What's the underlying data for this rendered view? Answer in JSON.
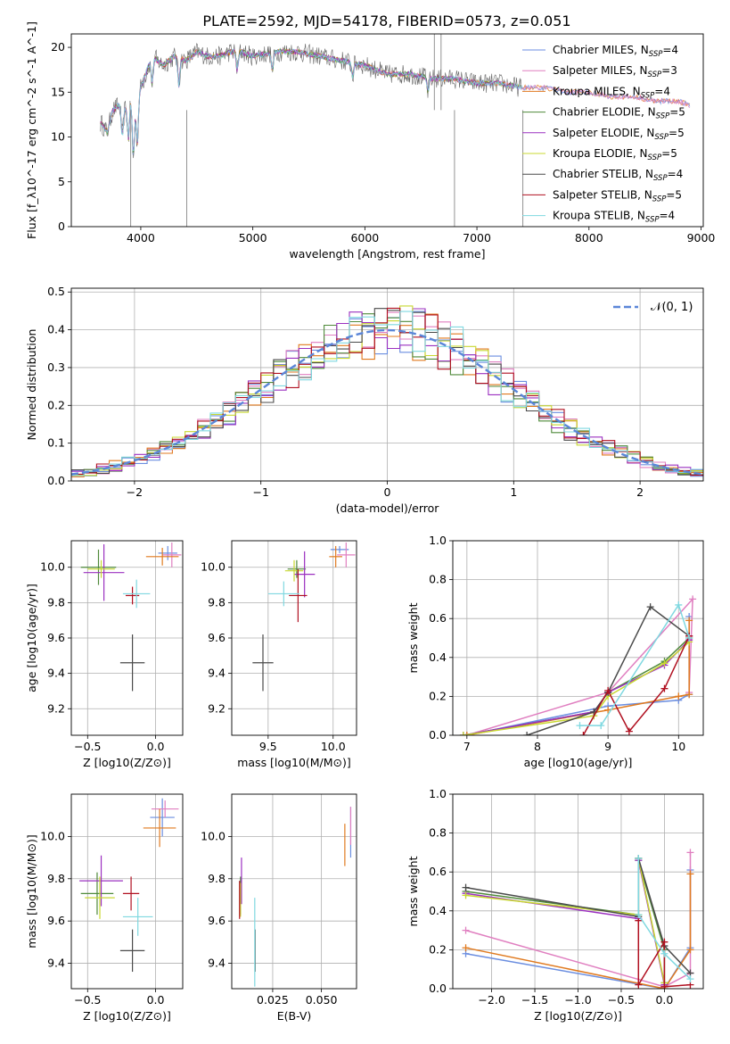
{
  "title": "PLATE=2592, MJD=54178, FIBERID=0573, z=0.051",
  "colors": {
    "Chabrier MILES": "#6b8ee0",
    "Salpeter MILES": "#e07fc0",
    "Kroupa MILES": "#e07a1f",
    "Chabrier ELODIE": "#4f8a3a",
    "Salpeter ELODIE": "#9b30c0",
    "Kroupa ELODIE": "#c8d830",
    "Chabrier STELIB": "#4a4a4a",
    "Salpeter STELIB": "#b01020",
    "Kroupa STELIB": "#7fd8e0"
  },
  "chart_data": [
    {
      "id": "spectrum",
      "type": "line",
      "xlabel": "wavelength [Angstrom, rest frame]",
      "ylabel": "Flux [f_λ10^-17 erg cm^-2 s^-1 A^-1]",
      "xlim": [
        3380,
        9020
      ],
      "ylim": [
        0,
        21.5
      ],
      "xticks": [
        "4000",
        "5000",
        "6000",
        "7000",
        "8000",
        "9000"
      ],
      "yticks": [
        "0",
        "5",
        "10",
        "15",
        "20"
      ],
      "grid": false,
      "legend": "upper-right",
      "data_x": [
        3650,
        3700,
        3750,
        3800,
        3850,
        3900,
        3950,
        4000,
        4100,
        4200,
        4300,
        4400,
        4500,
        4600,
        4700,
        4800,
        4900,
        5000,
        5200,
        5400,
        5600,
        5800,
        6000,
        6200,
        6400,
        6600,
        6800,
        7000,
        7200,
        7400,
        7600,
        7800,
        8000,
        8200,
        8400,
        8600,
        8800,
        8900
      ],
      "data_y": [
        11.5,
        10.5,
        13.0,
        13.5,
        13.0,
        14.0,
        13.5,
        15.5,
        19.0,
        18.0,
        19.0,
        18.5,
        19.5,
        19.0,
        19.0,
        19.5,
        19.5,
        19.0,
        19.5,
        19.5,
        19.0,
        18.5,
        18.0,
        17.0,
        17.0,
        16.5,
        16.5,
        16.0,
        16.0,
        15.5,
        15.5,
        15.0,
        15.0,
        14.5,
        14.5,
        14.0,
        14.0,
        13.5
      ],
      "legend_entries": [
        {
          "label": "Chabrier MILES, N",
          "sub": "SSP",
          "suffix": "=4"
        },
        {
          "label": "Salpeter MILES, N",
          "sub": "SSP",
          "suffix": "=3"
        },
        {
          "label": "Kroupa MILES, N",
          "sub": "SSP",
          "suffix": "=4"
        },
        {
          "label": "Chabrier ELODIE, N",
          "sub": "SSP",
          "suffix": "=5"
        },
        {
          "label": "Salpeter ELODIE, N",
          "sub": "SSP",
          "suffix": "=5"
        },
        {
          "label": "Kroupa ELODIE, N",
          "sub": "SSP",
          "suffix": "=5"
        },
        {
          "label": "Chabrier STELIB, N",
          "sub": "SSP",
          "suffix": "=4"
        },
        {
          "label": "Salpeter STELIB, N",
          "sub": "SSP",
          "suffix": "=5"
        },
        {
          "label": "Kroupa STELIB, N",
          "sub": "SSP",
          "suffix": "=4"
        }
      ]
    },
    {
      "id": "residuals",
      "type": "line",
      "xlabel": "(data-model)/error",
      "ylabel": "Normed distribution",
      "xlim": [
        -2.5,
        2.5
      ],
      "ylim": [
        0,
        0.51
      ],
      "xticks": [
        "-2",
        "-1",
        "0",
        "1",
        "2"
      ],
      "yticks": [
        "0.0",
        "0.1",
        "0.2",
        "0.3",
        "0.4",
        "0.5"
      ],
      "grid": true,
      "legend": "upper-right",
      "legend_label": "𝒩(0, 1)",
      "bin_width": 0.1,
      "bin_start": -2.5
    },
    {
      "id": "age_vs_Z",
      "type": "scatter",
      "xlabel": "Z [log10(Z/Z⊙)]",
      "ylabel": "age [log10(age/yr)]",
      "xlim": [
        -0.62,
        0.2
      ],
      "ylim": [
        9.05,
        10.15
      ],
      "xticks": [
        "-0.5",
        "0.0"
      ],
      "yticks": [
        "9.2",
        "9.4",
        "9.6",
        "9.8",
        "10.0"
      ],
      "grid": true,
      "points": [
        {
          "model": "Chabrier MILES",
          "x": 0.09,
          "y": 10.08,
          "xerr": 0.07,
          "yerr": 0.04
        },
        {
          "model": "Salpeter MILES",
          "x": 0.12,
          "y": 10.07,
          "xerr": 0.07,
          "yerr": 0.07
        },
        {
          "model": "Kroupa MILES",
          "x": 0.05,
          "y": 10.06,
          "xerr": 0.12,
          "yerr": 0.05
        },
        {
          "model": "Chabrier ELODIE",
          "x": -0.42,
          "y": 10.0,
          "xerr": 0.13,
          "yerr": 0.1
        },
        {
          "model": "Salpeter ELODIE",
          "x": -0.38,
          "y": 9.97,
          "xerr": 0.15,
          "yerr": 0.16
        },
        {
          "model": "Kroupa ELODIE",
          "x": -0.4,
          "y": 9.99,
          "xerr": 0.1,
          "yerr": 0.05
        },
        {
          "model": "Chabrier STELIB",
          "x": -0.17,
          "y": 9.46,
          "xerr": 0.09,
          "yerr": 0.16
        },
        {
          "model": "Salpeter STELIB",
          "x": -0.17,
          "y": 9.84,
          "xerr": 0.05,
          "yerr": 0.05
        },
        {
          "model": "Kroupa STELIB",
          "x": -0.14,
          "y": 9.85,
          "xerr": 0.1,
          "yerr": 0.08
        }
      ]
    },
    {
      "id": "age_vs_mass",
      "type": "scatter",
      "xlabel": "mass [log10(M/M⊙)]",
      "ylabel": "",
      "xlim": [
        9.22,
        10.18
      ],
      "ylim": [
        9.05,
        10.15
      ],
      "xticks": [
        "9.5",
        "10.0"
      ],
      "yticks": [
        "9.2",
        "9.4",
        "9.6",
        "9.8",
        "10.0"
      ],
      "grid": true,
      "points": [
        {
          "model": "Chabrier MILES",
          "x": 10.05,
          "y": 10.1,
          "xerr": 0.07,
          "yerr": 0.02
        },
        {
          "model": "Salpeter MILES",
          "x": 10.1,
          "y": 10.07,
          "xerr": 0.07,
          "yerr": 0.07
        },
        {
          "model": "Kroupa MILES",
          "x": 10.02,
          "y": 10.06,
          "xerr": 0.05,
          "yerr": 0.06
        },
        {
          "model": "Chabrier ELODIE",
          "x": 9.72,
          "y": 9.99,
          "xerr": 0.07,
          "yerr": 0.05
        },
        {
          "model": "Salpeter ELODIE",
          "x": 9.78,
          "y": 9.96,
          "xerr": 0.08,
          "yerr": 0.13
        },
        {
          "model": "Kroupa ELODIE",
          "x": 9.7,
          "y": 9.98,
          "xerr": 0.07,
          "yerr": 0.06
        },
        {
          "model": "Chabrier STELIB",
          "x": 9.46,
          "y": 9.46,
          "xerr": 0.08,
          "yerr": 0.16
        },
        {
          "model": "Salpeter STELIB",
          "x": 9.73,
          "y": 9.84,
          "xerr": 0.07,
          "yerr": 0.15
        },
        {
          "model": "Kroupa STELIB",
          "x": 9.62,
          "y": 9.85,
          "xerr": 0.12,
          "yerr": 0.07
        }
      ]
    },
    {
      "id": "mass_weight_vs_age",
      "type": "line",
      "xlabel": "age [log10(age/yr)]",
      "ylabel": "mass weight",
      "xlim": [
        6.8,
        10.35
      ],
      "ylim": [
        0,
        1.0
      ],
      "xticks": [
        "7",
        "8",
        "9",
        "10"
      ],
      "yticks": [
        "0.0",
        "0.2",
        "0.4",
        "0.6",
        "0.8",
        "1.0"
      ],
      "grid": true,
      "series": [
        {
          "model": "Chabrier MILES",
          "x": [
            7.0,
            9.0,
            10.0,
            10.15,
            10.15
          ],
          "y": [
            0.0,
            0.15,
            0.18,
            0.21,
            0.61
          ]
        },
        {
          "model": "Salpeter MILES",
          "x": [
            7.0,
            9.0,
            10.2,
            10.15
          ],
          "y": [
            0.0,
            0.22,
            0.7,
            0.22
          ]
        },
        {
          "model": "Kroupa MILES",
          "x": [
            7.0,
            9.0,
            10.0,
            10.15,
            10.15
          ],
          "y": [
            0.0,
            0.13,
            0.2,
            0.21,
            0.59
          ]
        },
        {
          "model": "Chabrier ELODIE",
          "x": [
            6.95,
            8.8,
            9.0,
            9.8,
            10.15
          ],
          "y": [
            0.0,
            0.12,
            0.22,
            0.38,
            0.5
          ]
        },
        {
          "model": "Salpeter ELODIE",
          "x": [
            6.95,
            8.8,
            9.0,
            9.8,
            10.15
          ],
          "y": [
            0.0,
            0.12,
            0.22,
            0.36,
            0.49
          ]
        },
        {
          "model": "Kroupa ELODIE",
          "x": [
            6.95,
            8.8,
            9.0,
            9.8,
            10.15
          ],
          "y": [
            0.0,
            0.1,
            0.2,
            0.37,
            0.48
          ]
        },
        {
          "model": "Chabrier STELIB",
          "x": [
            7.85,
            8.8,
            9.0,
            9.6,
            10.15
          ],
          "y": [
            0.0,
            0.12,
            0.22,
            0.66,
            0.51
          ]
        },
        {
          "model": "Salpeter STELIB",
          "x": [
            8.65,
            9.0,
            9.3,
            9.8,
            10.15
          ],
          "y": [
            0.0,
            0.23,
            0.02,
            0.24,
            0.51
          ]
        },
        {
          "model": "Kroupa STELIB",
          "x": [
            8.6,
            8.9,
            10.0,
            10.15
          ],
          "y": [
            0.05,
            0.05,
            0.67,
            0.5
          ]
        }
      ]
    },
    {
      "id": "mass_vs_Z",
      "type": "scatter",
      "xlabel": "Z [log10(Z/Z⊙)]",
      "ylabel": "mass [log10(M/M⊙)]",
      "xlim": [
        -0.62,
        0.2
      ],
      "ylim": [
        9.28,
        10.2
      ],
      "xticks": [
        "-0.5",
        "0.0"
      ],
      "yticks": [
        "9.4",
        "9.6",
        "9.8",
        "10.0"
      ],
      "grid": true,
      "points": [
        {
          "model": "Chabrier MILES",
          "x": 0.05,
          "y": 10.09,
          "xerr": 0.09,
          "yerr": 0.09
        },
        {
          "model": "Salpeter MILES",
          "x": 0.07,
          "y": 10.13,
          "xerr": 0.1,
          "yerr": 0.04
        },
        {
          "model": "Kroupa MILES",
          "x": 0.03,
          "y": 10.04,
          "xerr": 0.12,
          "yerr": 0.09
        },
        {
          "model": "Chabrier ELODIE",
          "x": -0.43,
          "y": 9.73,
          "xerr": 0.12,
          "yerr": 0.1
        },
        {
          "model": "Salpeter ELODIE",
          "x": -0.4,
          "y": 9.79,
          "xerr": 0.16,
          "yerr": 0.12
        },
        {
          "model": "Kroupa ELODIE",
          "x": -0.41,
          "y": 9.71,
          "xerr": 0.11,
          "yerr": 0.1
        },
        {
          "model": "Chabrier STELIB",
          "x": -0.17,
          "y": 9.46,
          "xerr": 0.09,
          "yerr": 0.1
        },
        {
          "model": "Salpeter STELIB",
          "x": -0.18,
          "y": 9.73,
          "xerr": 0.06,
          "yerr": 0.08
        },
        {
          "model": "Kroupa STELIB",
          "x": -0.13,
          "y": 9.62,
          "xerr": 0.11,
          "yerr": 0.09
        }
      ]
    },
    {
      "id": "mass_vs_EBV",
      "type": "scatter",
      "xlabel": "E(B-V)",
      "ylabel": "",
      "xlim": [
        0.004,
        0.068
      ],
      "ylim": [
        9.28,
        10.2
      ],
      "xticks": [
        "0.025",
        "0.050"
      ],
      "yticks": [
        "9.4",
        "9.6",
        "9.8",
        "10.0"
      ],
      "grid": true,
      "points": [
        {
          "model": "Chabrier MILES",
          "x": 0.065,
          "y": 10.02,
          "xerr": 0,
          "yerr": 0.12
        },
        {
          "model": "Salpeter MILES",
          "x": 0.065,
          "y": 10.05,
          "xerr": 0,
          "yerr": 0.09
        },
        {
          "model": "Kroupa MILES",
          "x": 0.062,
          "y": 9.96,
          "xerr": 0,
          "yerr": 0.1
        },
        {
          "model": "Chabrier ELODIE",
          "x": 0.0085,
          "y": 9.72,
          "xerr": 0,
          "yerr": 0.09
        },
        {
          "model": "Salpeter ELODIE",
          "x": 0.009,
          "y": 9.79,
          "xerr": 0,
          "yerr": 0.11
        },
        {
          "model": "Kroupa ELODIE",
          "x": 0.0085,
          "y": 9.7,
          "xerr": 0,
          "yerr": 0.08
        },
        {
          "model": "Chabrier STELIB",
          "x": 0.016,
          "y": 9.46,
          "xerr": 0,
          "yerr": 0.1
        },
        {
          "model": "Salpeter STELIB",
          "x": 0.008,
          "y": 9.7,
          "xerr": 0,
          "yerr": 0.09
        },
        {
          "model": "Kroupa STELIB",
          "x": 0.0158,
          "y": 9.5,
          "xerr": 0,
          "yerr": 0.21
        }
      ]
    },
    {
      "id": "mass_weight_vs_Z",
      "type": "line",
      "xlabel": "Z [log10(Z/Z⊙)]",
      "ylabel": "mass weight",
      "xlim": [
        -2.45,
        0.45
      ],
      "ylim": [
        0,
        1.0
      ],
      "xticks": [
        "-2.0",
        "-1.5",
        "-1.0",
        "-0.5",
        "0.0"
      ],
      "yticks": [
        "0.0",
        "0.2",
        "0.4",
        "0.6",
        "0.8",
        "1.0"
      ],
      "grid": true,
      "series": [
        {
          "model": "Chabrier MILES",
          "x": [
            -2.3,
            0.0,
            0.3,
            0.3
          ],
          "y": [
            0.18,
            0.0,
            0.21,
            0.61
          ]
        },
        {
          "model": "Salpeter MILES",
          "x": [
            -2.3,
            0.0,
            0.3,
            0.3
          ],
          "y": [
            0.3,
            0.01,
            0.08,
            0.7
          ]
        },
        {
          "model": "Kroupa MILES",
          "x": [
            -2.3,
            0.0,
            0.3,
            0.3
          ],
          "y": [
            0.21,
            0.0,
            0.2,
            0.59
          ]
        },
        {
          "model": "Chabrier ELODIE",
          "x": [
            -2.3,
            -0.3,
            -0.3,
            0.0,
            0.0
          ],
          "y": [
            0.5,
            0.38,
            0.66,
            0.2,
            0.03
          ]
        },
        {
          "model": "Salpeter ELODIE",
          "x": [
            -2.3,
            -0.3,
            -0.3,
            0.0
          ],
          "y": [
            0.49,
            0.36,
            0.66,
            0.02
          ]
        },
        {
          "model": "Kroupa ELODIE",
          "x": [
            -2.3,
            -0.3,
            -0.3,
            0.0
          ],
          "y": [
            0.48,
            0.38,
            0.67,
            0.03
          ]
        },
        {
          "model": "Chabrier STELIB",
          "x": [
            -2.3,
            -0.3,
            -0.3,
            0.0,
            0.3
          ],
          "y": [
            0.52,
            0.37,
            0.67,
            0.22,
            0.08
          ]
        },
        {
          "model": "Salpeter STELIB",
          "x": [
            -0.3,
            -0.3,
            0.0,
            0.0,
            0.3
          ],
          "y": [
            0.35,
            0.02,
            0.24,
            0.01,
            0.02
          ]
        },
        {
          "model": "Kroupa STELIB",
          "x": [
            -0.3,
            -0.3,
            0.0,
            0.3
          ],
          "y": [
            0.67,
            0.38,
            0.18,
            0.05
          ]
        }
      ]
    }
  ]
}
